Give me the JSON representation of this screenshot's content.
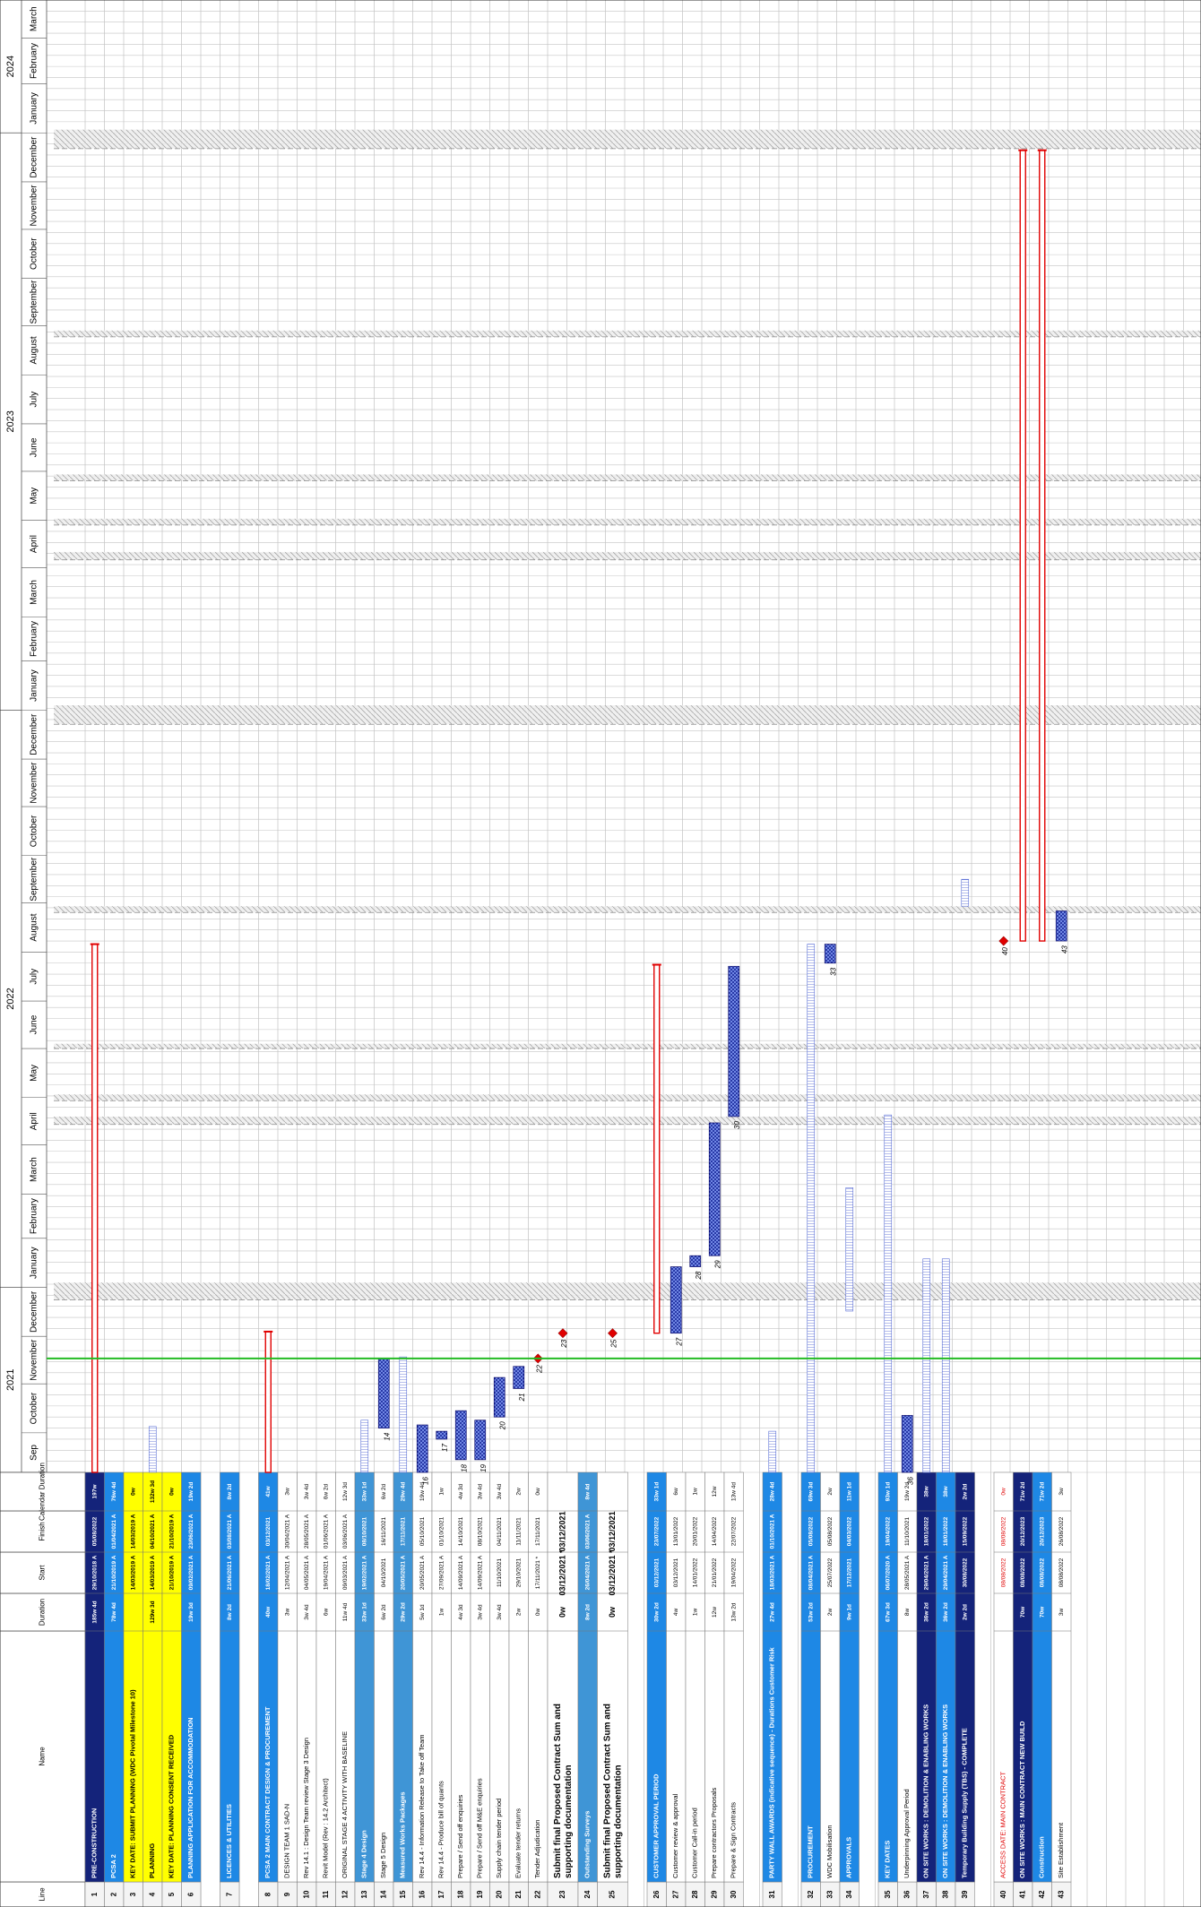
{
  "columns": {
    "line": "Line",
    "name": "Name",
    "duration": "Duration",
    "start": "Start",
    "finish": "Finish",
    "calendar": "Calendar Duration"
  },
  "timeline": {
    "range": [
      "2021-09-06",
      "2024-03-25"
    ],
    "years": [
      "2021",
      "2022",
      "2023",
      "2024"
    ],
    "months": [
      {
        "label": "Sep",
        "start": "2021-09"
      },
      {
        "label": "October",
        "start": "2021-10"
      },
      {
        "label": "November",
        "start": "2021-11"
      },
      {
        "label": "December",
        "start": "2021-12"
      },
      {
        "label": "January",
        "start": "2022-01"
      },
      {
        "label": "February",
        "start": "2022-02"
      },
      {
        "label": "March",
        "start": "2022-03"
      },
      {
        "label": "April",
        "start": "2022-04"
      },
      {
        "label": "May",
        "start": "2022-05"
      },
      {
        "label": "June",
        "start": "2022-06"
      },
      {
        "label": "July",
        "start": "2022-07"
      },
      {
        "label": "August",
        "start": "2022-08"
      },
      {
        "label": "September",
        "start": "2022-09"
      },
      {
        "label": "October",
        "start": "2022-10"
      },
      {
        "label": "November",
        "start": "2022-11"
      },
      {
        "label": "December",
        "start": "2022-12"
      },
      {
        "label": "January",
        "start": "2023-01"
      },
      {
        "label": "February",
        "start": "2023-02"
      },
      {
        "label": "March",
        "start": "2023-03"
      },
      {
        "label": "April",
        "start": "2023-04"
      },
      {
        "label": "May",
        "start": "2023-05"
      },
      {
        "label": "June",
        "start": "2023-06"
      },
      {
        "label": "July",
        "start": "2023-07"
      },
      {
        "label": "August",
        "start": "2023-08"
      },
      {
        "label": "September",
        "start": "2023-09"
      },
      {
        "label": "October",
        "start": "2023-10"
      },
      {
        "label": "November",
        "start": "2023-11"
      },
      {
        "label": "December",
        "start": "2023-12"
      },
      {
        "label": "January",
        "start": "2024-01"
      },
      {
        "label": "February",
        "start": "2024-02"
      },
      {
        "label": "March",
        "start": "2024-03"
      }
    ]
  },
  "rows": [
    {
      "line": "1",
      "name": "PRE-CONSTRUCTION",
      "duration": "185w 4d",
      "start": "29/10/2018 A",
      "finish": "05/08/2022",
      "calendar": "197w",
      "fill": "#14237a",
      "text_color": "#ffffff",
      "bar": "summary"
    },
    {
      "line": "2",
      "name": "PCSA 2",
      "duration": "78w 4d",
      "start": "21/10/2019 A",
      "finish": "01/04/2021 A",
      "calendar": "76w 4d",
      "fill": "#1e88e5",
      "text_color": "#ffffff",
      "bar": "summary"
    },
    {
      "line": "3",
      "name": "KEY DATE: SUBMIT PLANNING (WDC Pivotal Milestone 10)",
      "start": "14/03/2019 A",
      "finish": "14/03/2019 A",
      "calendar": "0w",
      "fill": "#ffff00",
      "text_color": "#000000",
      "bar": "milestone"
    },
    {
      "line": "4",
      "name": "PLANNING",
      "duration": "129w 3d",
      "start": "14/03/2019 A",
      "finish": "04/10/2021 A",
      "calendar": "132w 3d",
      "fill": "#ffff00",
      "text_color": "#000000",
      "bar": "done"
    },
    {
      "line": "5",
      "name": "KEY DATE: PLANNING CONSENT RECEIVED",
      "start": "21/10/2019 A",
      "finish": "21/10/2019 A",
      "calendar": "0w",
      "fill": "#ffff00",
      "text_color": "#000000",
      "bar": "milestone"
    },
    {
      "line": "6",
      "name": "PLANNING APPLICATION FOR ACCOMMODATION",
      "duration": "19w 3d",
      "start": "09/02/2021 A",
      "finish": "23/06/2021 A",
      "calendar": "19w 2d",
      "fill": "#1e88e5",
      "text_color": "#ffffff",
      "bar": "done"
    },
    {
      "line": "7",
      "name": "LICENCES & UTILITIES",
      "duration": "8w 2d",
      "start": "21/06/2021 A",
      "finish": "03/08/2021 A",
      "calendar": "8w 2d",
      "fill": "#1e88e5",
      "text_color": "#ffffff",
      "bar": "done"
    },
    {
      "line": "8",
      "name": "PCSA 2 MAIN CONTRACT DESIGN & PROCUREMENT",
      "duration": "40w",
      "start": "18/02/2021 A",
      "finish": "03/12/2021",
      "calendar": "41w",
      "fill": "#1e88e5",
      "text_color": "#ffffff",
      "bar": "summary"
    },
    {
      "line": "9",
      "name": "DESIGN TEAM 1 SAD-N",
      "duration": "3w",
      "start": "12/04/2021 A",
      "finish": "30/04/2021 A",
      "calendar": "3w",
      "fill": "#ffffff",
      "text_color": "#000000",
      "bar": "task"
    },
    {
      "line": "10",
      "name": "Rev 14.1 : Design Team review Stage 3 Design",
      "duration": "3w 4d",
      "start": "04/05/2021 A",
      "finish": "28/05/2021 A",
      "calendar": "3w 4d",
      "fill": "#ffffff",
      "text_color": "#000000",
      "bar": "task"
    },
    {
      "line": "11",
      "name": "Revit Model (Rev : 14.2 Architect)",
      "duration": "6w",
      "start": "19/04/2021 A",
      "finish": "01/06/2021 A",
      "calendar": "6w 2d",
      "fill": "#ffffff",
      "text_color": "#000000",
      "bar": "task"
    },
    {
      "line": "12",
      "name": "ORIGINAL STAGE 4 ACTIVITY WITH BASELINE",
      "duration": "11w 4d",
      "start": "09/03/2021 A",
      "finish": "03/06/2021 A",
      "calendar": "12w 3d",
      "fill": "#ffffff",
      "text_color": "#000000",
      "bar": "task"
    },
    {
      "line": "13",
      "name": "Stage 4 Design",
      "duration": "33w 1d",
      "start": "19/02/2021 A",
      "finish": "08/10/2021",
      "calendar": "33w 1d",
      "fill": "#3f95d6",
      "text_color": "#ffffff",
      "bar": "done"
    },
    {
      "line": "14",
      "name": "Stage 5 Design",
      "duration": "6w 2d",
      "start": "04/10/2021",
      "finish": "16/11/2021",
      "calendar": "6w 2d",
      "fill": "#ffffff",
      "text_color": "#000000",
      "bar": "task"
    },
    {
      "line": "15",
      "name": "Measured Works Packages",
      "duration": "29w 2d",
      "start": "20/05/2021 A",
      "finish": "17/11/2021",
      "calendar": "29w 4d",
      "fill": "#3f95d6",
      "text_color": "#ffffff",
      "bar": "done"
    },
    {
      "line": "16",
      "name": "Rev 14.4 - Information Release to Take off Team",
      "duration": "5w 1d",
      "start": "20/05/2021 A",
      "finish": "05/10/2021",
      "calendar": "19w 4d",
      "fill": "#ffffff",
      "text_color": "#000000",
      "bar": "task"
    },
    {
      "line": "17",
      "name": "Rev 14.4 - Produce bill of quants",
      "duration": "1w",
      "start": "27/09/2021 A",
      "finish": "01/10/2021",
      "calendar": "1w",
      "fill": "#ffffff",
      "text_color": "#000000",
      "bar": "task"
    },
    {
      "line": "18",
      "name": "Prepare / Send off enquiries",
      "duration": "4w 3d",
      "start": "14/09/2021 A",
      "finish": "14/10/2021",
      "calendar": "4w 3d",
      "fill": "#ffffff",
      "text_color": "#000000",
      "bar": "task"
    },
    {
      "line": "19",
      "name": "Prepare / Send off M&E enquiries",
      "duration": "3w 4d",
      "start": "14/09/2021 A",
      "finish": "08/10/2021",
      "calendar": "3w 4d",
      "fill": "#ffffff",
      "text_color": "#000000",
      "bar": "task"
    },
    {
      "line": "20",
      "name": "Supply chain tender period",
      "duration": "3w 4d",
      "start": "11/10/2021",
      "finish": "04/11/2021",
      "calendar": "3w 4d",
      "fill": "#ffffff",
      "text_color": "#000000",
      "bar": "task"
    },
    {
      "line": "21",
      "name": "Evaluate tender returns",
      "duration": "2w",
      "start": "29/10/2021",
      "finish": "11/11/2021",
      "calendar": "2w",
      "fill": "#ffffff",
      "text_color": "#000000",
      "bar": "task"
    },
    {
      "line": "22",
      "name": "Tender Adjudication",
      "duration": "0w",
      "start": "17/11/2021 *",
      "finish": "17/11/2021",
      "calendar": "0w",
      "fill": "#ffffff",
      "text_color": "#000000",
      "bar": "milestone"
    },
    {
      "line": "23",
      "name": "Submit final Proposed Contract Sum and supporting documentation",
      "duration": "0w",
      "start": "03/12/2021 *",
      "finish": "03/12/2021",
      "fill": "#ffffff",
      "text_color": "#000000",
      "bar": "milestone"
    },
    {
      "line": "24",
      "name": "Outstanding Surveys",
      "duration": "8w 2d",
      "start": "26/04/2021 A",
      "finish": "03/06/2021 A",
      "calendar": "8w 4d",
      "fill": "#3f95d6",
      "text_color": "#ffffff",
      "bar": "done"
    },
    {
      "line": "25",
      "name": "Submit final Proposed Contract Sum and supporting documentation",
      "duration": "0w",
      "start": "03/12/2021 *",
      "finish": "03/12/2021",
      "fill": "#ffffff",
      "text_color": "#000000",
      "bar": "milestone"
    },
    {
      "line": "26",
      "name": "CUSTOMER APPROVAL PERIOD",
      "duration": "30w 2d",
      "start": "03/12/2021",
      "finish": "23/07/2022",
      "calendar": "33w 1d",
      "fill": "#1e88e5",
      "text_color": "#ffffff",
      "bar": "summary"
    },
    {
      "line": "27",
      "name": "Customer review & approval",
      "duration": "4w",
      "start": "03/12/2021",
      "finish": "13/01/2022",
      "calendar": "6w",
      "fill": "#ffffff",
      "text_color": "#000000",
      "bar": "task"
    },
    {
      "line": "28",
      "name": "Customer Call-in period",
      "duration": "1w",
      "start": "14/01/2022",
      "finish": "20/01/2022",
      "calendar": "1w",
      "fill": "#ffffff",
      "text_color": "#000000",
      "bar": "task"
    },
    {
      "line": "29",
      "name": "Prepare contractors Proposals",
      "duration": "12w",
      "start": "21/01/2022",
      "finish": "14/04/2022",
      "calendar": "12w",
      "fill": "#ffffff",
      "text_color": "#000000",
      "bar": "task"
    },
    {
      "line": "30",
      "name": "Prepare & Sign Contracts",
      "duration": "13w 2d",
      "start": "19/04/2022",
      "finish": "22/07/2022",
      "calendar": "13w 4d",
      "fill": "#ffffff",
      "text_color": "#000000",
      "bar": "task"
    },
    {
      "line": "31",
      "name": "PARTY WALL AWARDS (indicative sequence) - Durations Customer Risk",
      "duration": "27w 4d",
      "start": "18/03/2021 A",
      "finish": "01/10/2021 A",
      "calendar": "28w 4d",
      "fill": "#1e88e5",
      "text_color": "#ffffff",
      "bar": "done"
    },
    {
      "line": "32",
      "name": "PROCUREMENT",
      "duration": "53w 2d",
      "start": "08/04/2021 A",
      "finish": "05/08/2022",
      "calendar": "69w 3d",
      "fill": "#1e88e5",
      "text_color": "#ffffff",
      "bar": "done"
    },
    {
      "line": "33",
      "name": "WDC Mobilisation",
      "duration": "2w",
      "start": "25/07/2022",
      "finish": "05/08/2022",
      "calendar": "2w",
      "fill": "#ffffff",
      "text_color": "#000000",
      "bar": "task"
    },
    {
      "line": "34",
      "name": "APPROVALS",
      "duration": "9w 1d",
      "start": "17/12/2021",
      "finish": "04/03/2022",
      "calendar": "11w 1d",
      "fill": "#1e88e5",
      "text_color": "#ffffff",
      "bar": "done"
    },
    {
      "line": "35",
      "name": "KEY DATES",
      "duration": "67w 3d",
      "start": "06/07/2020 A",
      "finish": "19/04/2022",
      "calendar": "93w 1d",
      "fill": "#1e88e5",
      "text_color": "#ffffff",
      "bar": "done"
    },
    {
      "line": "36",
      "name": "Underpinning Approval Period",
      "duration": "8w",
      "start": "28/05/2021 A",
      "finish": "11/10/2021",
      "calendar": "19w 2d",
      "fill": "#ffffff",
      "text_color": "#000000",
      "bar": "task"
    },
    {
      "line": "37",
      "name": "ON SITE WORKS : DEMOLITION & ENABLING WORKS",
      "duration": "36w 2d",
      "start": "29/04/2021 A",
      "finish": "18/01/2022",
      "calendar": "38w",
      "fill": "#14237a",
      "text_color": "#ffffff",
      "bar": "done"
    },
    {
      "line": "38",
      "name": "ON SITE WORKS : DEMOLITION & ENABLING WORKS",
      "duration": "36w 2d",
      "start": "29/04/2021 A",
      "finish": "18/01/2022",
      "calendar": "38w",
      "fill": "#1e88e5",
      "text_color": "#ffffff",
      "bar": "done"
    },
    {
      "line": "39",
      "name": "Temporary Building Supply (TBS) - COMPLETE",
      "duration": "2w 2d",
      "start": "30/08/2022",
      "finish": "15/09/2022",
      "calendar": "2w 2d",
      "fill": "#14237a",
      "text_color": "#ffffff",
      "bar": "done"
    },
    {
      "line": "40",
      "name": "ACCESS DATE: MAIN CONTRACT",
      "start": "08/08/2022",
      "finish": "08/08/2022",
      "calendar": "0w",
      "fill": "#ffffff",
      "text_color": "#e00000",
      "bar": "milestone"
    },
    {
      "line": "41",
      "name": "ON SITE WORKS : MAIN CONTRACT NEW BUILD",
      "duration": "70w",
      "start": "08/08/2022",
      "finish": "20/12/2023",
      "calendar": "71w 2d",
      "fill": "#14237a",
      "text_color": "#ffffff",
      "bar": "summary"
    },
    {
      "line": "42",
      "name": "Construction",
      "duration": "70w",
      "start": "08/08/2022",
      "finish": "20/12/2023",
      "calendar": "71w 2d",
      "fill": "#1e88e5",
      "text_color": "#ffffff",
      "bar": "summary"
    },
    {
      "line": "43",
      "name": "Site Establishment",
      "duration": "3w",
      "start": "08/08/2022",
      "finish": "26/08/2022",
      "calendar": "3w",
      "fill": "#ffffff",
      "text_color": "#000000",
      "bar": "task"
    }
  ]
}
